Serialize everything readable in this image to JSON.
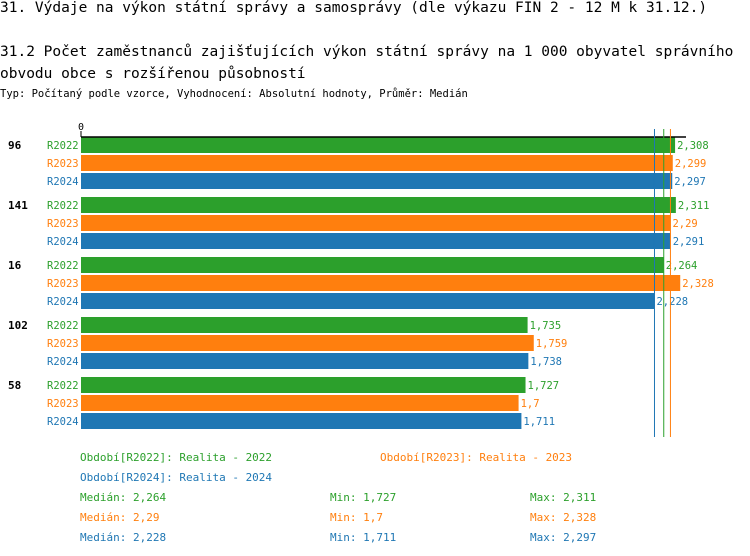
{
  "header": {
    "title": "31. Výdaje na výkon státní správy a samosprávy (dle výkazu FIN 2 - 12 M k 31.12.)",
    "subtitle": "31.2 Počet zaměstnanců zajišťujících výkon státní správy na 1 000 obyvatel správního obvodu obce s rozšířenou působností",
    "info": "Typ: Počítaný podle vzorce, Vyhodnocení: Absolutní hodnoty, Průměr: Medián"
  },
  "chart_data": {
    "type": "bar",
    "orientation": "horizontal",
    "x_tick_labels": [
      "0"
    ],
    "xlim": [
      0,
      2.35
    ],
    "categories": [
      "96",
      "141",
      "16",
      "102",
      "58"
    ],
    "series": [
      {
        "name": "R2022",
        "color": "#2ca02c",
        "values": [
          2.308,
          2.311,
          2.264,
          1.735,
          1.727
        ],
        "labels": [
          "2,308",
          "2,311",
          "2,264",
          "1,735",
          "1,727"
        ]
      },
      {
        "name": "R2023",
        "color": "#ff7f0e",
        "values": [
          2.299,
          2.29,
          2.328,
          1.759,
          1.7
        ],
        "labels": [
          "2,299",
          "2,29",
          "2,328",
          "1,759",
          "1,7"
        ]
      },
      {
        "name": "R2024",
        "color": "#1f77b4",
        "values": [
          2.297,
          2.291,
          2.228,
          1.738,
          1.711
        ],
        "labels": [
          "2,297",
          "2,291",
          "2,228",
          "1,738",
          "1,711"
        ]
      }
    ],
    "median_lines": [
      {
        "series": "R2022",
        "value": 2.264,
        "color": "#2ca02c"
      },
      {
        "series": "R2023",
        "value": 2.29,
        "color": "#ff7f0e"
      },
      {
        "series": "R2024",
        "value": 2.228,
        "color": "#1f77b4"
      }
    ]
  },
  "legend": {
    "items": [
      {
        "text": "Období[R2022]: Realita - 2022",
        "color": "#2ca02c"
      },
      {
        "text": "Období[R2023]: Realita - 2023",
        "color": "#ff7f0e"
      },
      {
        "text": "Období[R2024]: Realita - 2024",
        "color": "#1f77b4"
      }
    ],
    "stats": [
      {
        "median": "Medián: 2,264",
        "min": "Min: 1,727",
        "max": "Max: 2,311",
        "color": "#2ca02c"
      },
      {
        "median": "Medián: 2,29",
        "min": "Min: 1,7",
        "max": "Max: 2,328",
        "color": "#ff7f0e"
      },
      {
        "median": "Medián: 2,228",
        "min": "Min: 1,711",
        "max": "Max: 2,297",
        "color": "#1f77b4"
      }
    ]
  }
}
